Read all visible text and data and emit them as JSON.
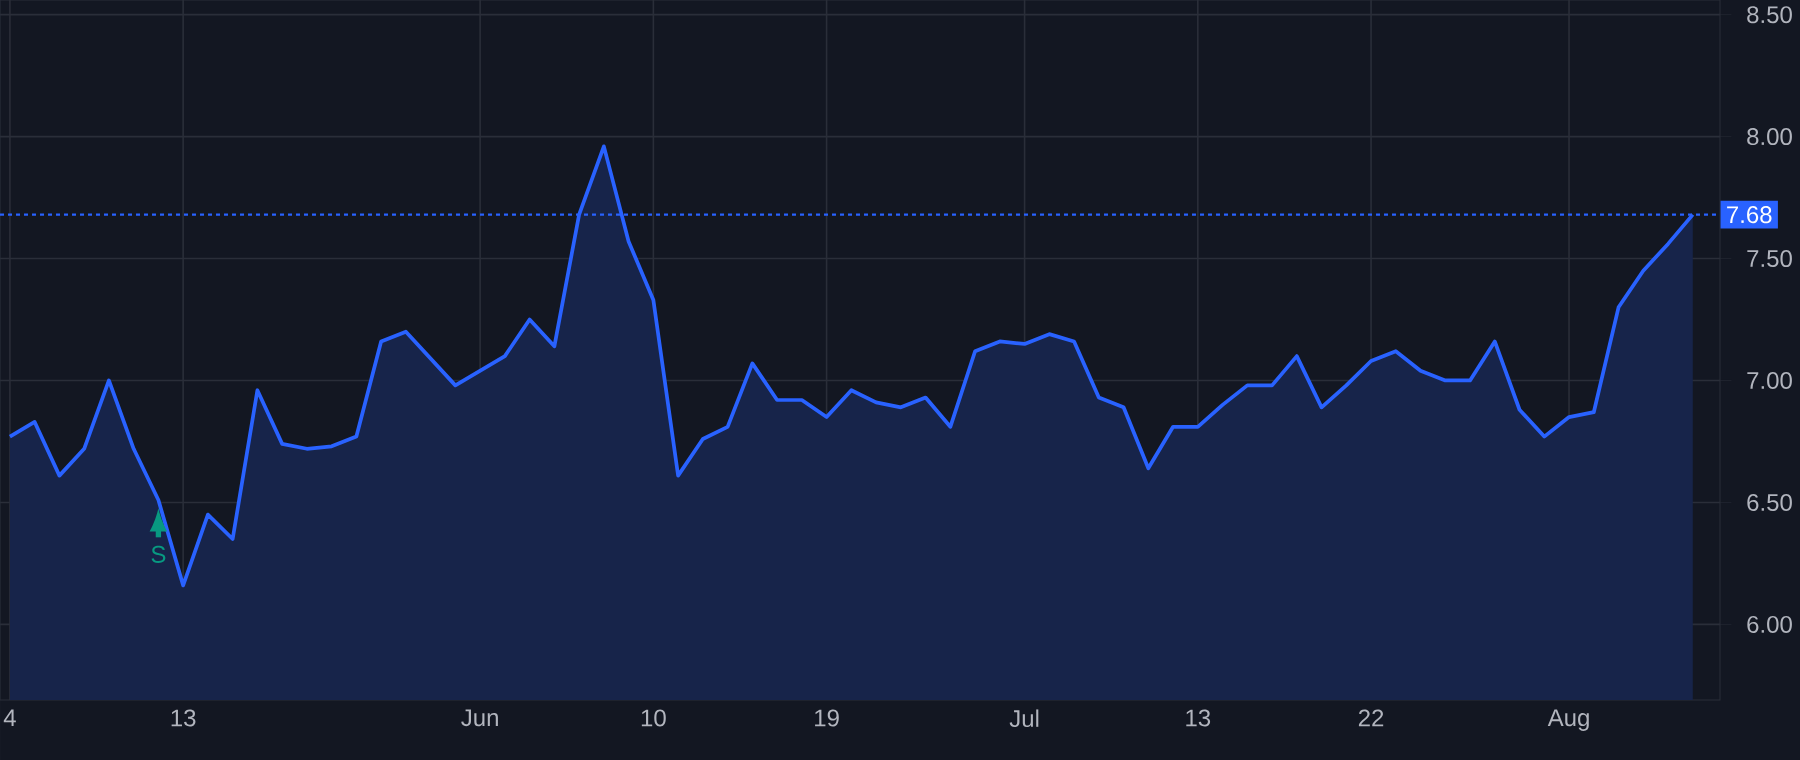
{
  "chart_data": {
    "type": "area",
    "color": "#2962ff",
    "categories": [
      "4",
      null,
      null,
      null,
      null,
      null,
      null,
      "13",
      null,
      null,
      null,
      null,
      null,
      null,
      null,
      null,
      null,
      null,
      null,
      "Jun",
      null,
      null,
      null,
      null,
      null,
      null,
      "10",
      null,
      null,
      null,
      null,
      null,
      null,
      "19",
      null,
      null,
      null,
      null,
      null,
      null,
      null,
      "Jul",
      null,
      null,
      null,
      null,
      null,
      null,
      "13",
      null,
      null,
      null,
      null,
      null,
      null,
      "22",
      null,
      null,
      null,
      null,
      null,
      null,
      null,
      "Aug",
      null,
      null,
      null,
      null,
      null
    ],
    "values": [
      6.77,
      6.83,
      6.61,
      6.72,
      7.0,
      6.72,
      6.51,
      6.16,
      6.45,
      6.35,
      6.96,
      6.74,
      6.72,
      6.73,
      6.77,
      7.16,
      7.2,
      7.09,
      6.98,
      7.04,
      7.1,
      7.25,
      7.14,
      7.68,
      7.96,
      7.57,
      7.33,
      6.61,
      6.76,
      6.81,
      7.07,
      6.92,
      6.92,
      6.85,
      6.96,
      6.91,
      6.89,
      6.93,
      6.81,
      7.12,
      7.16,
      7.15,
      7.19,
      7.16,
      6.93,
      6.89,
      6.64,
      6.81,
      6.81,
      6.9,
      6.98,
      6.98,
      7.1,
      6.89,
      6.98,
      7.08,
      7.12,
      7.04,
      7.0,
      7.0,
      7.16,
      6.88,
      6.77,
      6.85,
      6.87,
      7.3,
      7.45,
      7.56,
      7.68
    ],
    "ylim": [
      5.69,
      8.56
    ],
    "yticks": [
      {
        "value": 6,
        "label": "6.00"
      },
      {
        "value": 6.5,
        "label": "6.50"
      },
      {
        "value": 7,
        "label": "7.00"
      },
      {
        "value": 7.5,
        "label": "7.50"
      },
      {
        "value": 8,
        "label": "8.00"
      },
      {
        "value": 8.5,
        "label": "8.50"
      }
    ],
    "grid": true,
    "ref_lines": [
      {
        "axis": "y",
        "value": 7.68,
        "label": "7.68",
        "color": "#2962ff",
        "line_style": "dotted"
      }
    ],
    "annotations": [
      {
        "text": "S",
        "y": 6.51
      }
    ]
  }
}
